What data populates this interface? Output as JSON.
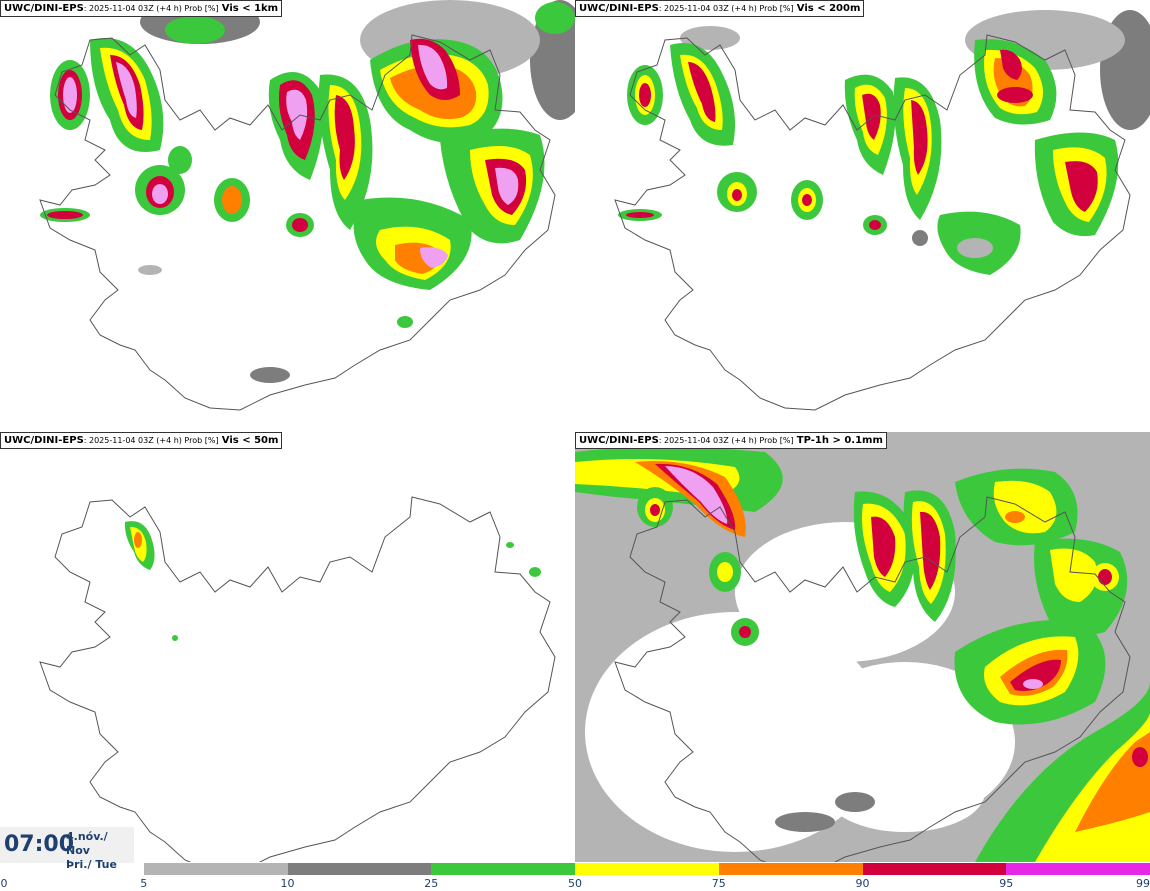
{
  "panels": [
    {
      "model": "UWC/DINI-EPS",
      "meta": ": 2025-11-04 03Z (+4 h) Prob [%]",
      "threshold": "Vis < 1km"
    },
    {
      "model": "UWC/DINI-EPS",
      "meta": ": 2025-11-04 03Z (+4 h) Prob [%]",
      "threshold": "Vis < 200m"
    },
    {
      "model": "UWC/DINI-EPS",
      "meta": ": 2025-11-04 03Z (+4 h) Prob [%]",
      "threshold": "Vis < 50m"
    },
    {
      "model": "UWC/DINI-EPS",
      "meta": ": 2025-11-04 03Z (+4 h) Prob [%]",
      "threshold": "TP-1h > 0.1mm"
    }
  ],
  "valid_time": {
    "time": "07:00",
    "date_line1": "4.nóv./ Nov",
    "date_line2": "Þri./ Tue"
  },
  "colorbar": {
    "ticks": [
      "0",
      "5",
      "10",
      "25",
      "50",
      "75",
      "90",
      "95",
      "99"
    ],
    "colors": [
      "#ffffff",
      "#b4b4b4",
      "#7d7d7d",
      "#3cc83c",
      "#ffff00",
      "#ff7f00",
      "#d2003c",
      "#e628e6",
      "#f0a0f0"
    ]
  },
  "palette": {
    "coast": "#555555",
    "gray_light": "#b4b4b4",
    "gray_dark": "#7d7d7d",
    "green": "#3cc83c",
    "yellow": "#ffff00",
    "orange": "#ff7f00",
    "red": "#d2003c",
    "magenta": "#e628e6",
    "pink": "#f0a0f0"
  }
}
